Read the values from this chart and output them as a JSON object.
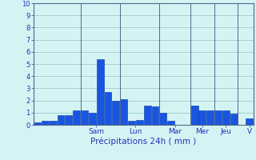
{
  "values": [
    0.2,
    0.3,
    0.3,
    0.8,
    0.8,
    1.2,
    1.2,
    1.0,
    5.4,
    2.7,
    2.0,
    2.1,
    0.3,
    0.4,
    1.6,
    1.5,
    1.0,
    0.3,
    0.0,
    0.0,
    1.6,
    1.2,
    1.2,
    1.2,
    1.2,
    0.9,
    0.0,
    0.5
  ],
  "day_labels": [
    "Sam",
    "Lun",
    "Mar",
    "Mer",
    "Jeu",
    "V"
  ],
  "day_tick_positions": [
    7.5,
    12.5,
    17.5,
    21.0,
    24.0,
    27.0
  ],
  "day_vline_positions": [
    5.5,
    10.5,
    15.5,
    19.5,
    22.5,
    25.5
  ],
  "xlabel": "Précipitations 24h ( mm )",
  "ylim": [
    0,
    10
  ],
  "yticks": [
    0,
    1,
    2,
    3,
    4,
    5,
    6,
    7,
    8,
    9,
    10
  ],
  "bar_color": "#1a55e0",
  "bar_edge_color": "#0033aa",
  "bg_color": "#d4f4f4",
  "grid_color": "#99cccc",
  "axis_color": "#556688",
  "label_color": "#2233bb",
  "tick_label_color": "#2233bb"
}
